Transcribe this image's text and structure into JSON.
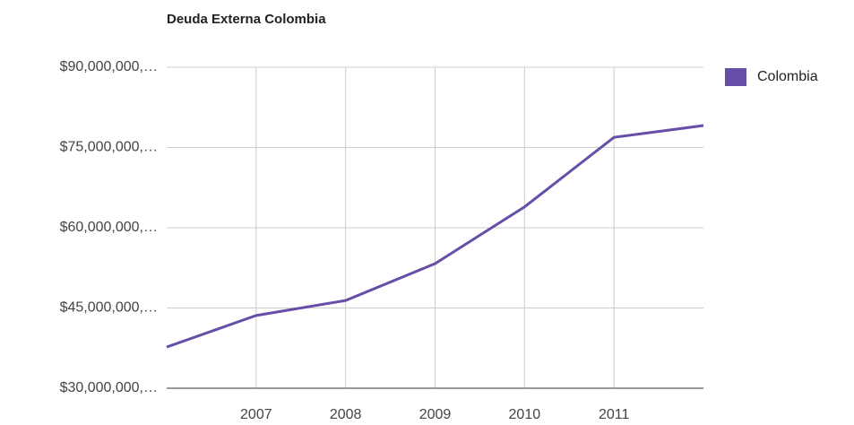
{
  "chart_data": {
    "type": "line",
    "title": "Deuda Externa Colombia",
    "x": [
      2006,
      2007,
      2008,
      2009,
      2010,
      2011,
      2012
    ],
    "series": [
      {
        "name": "Colombia",
        "color": "#674ea7",
        "values": [
          37700000,
          43600000,
          46400000,
          53300000,
          63900000,
          76900000,
          79100000
        ]
      }
    ],
    "xlim": [
      2006,
      2012
    ],
    "xticks": [
      2007,
      2008,
      2009,
      2010,
      2011
    ],
    "ylim": [
      30000000,
      90000000
    ],
    "yticks": [
      {
        "value": 30000000,
        "label": "$30,000,000,…"
      },
      {
        "value": 45000000,
        "label": "$45,000,000,…"
      },
      {
        "value": 60000000,
        "label": "$60,000,000,…"
      },
      {
        "value": 75000000,
        "label": "$75,000,000,…"
      },
      {
        "value": 90000000,
        "label": "$90,000,000,…"
      }
    ],
    "grid": true,
    "legend": "right"
  }
}
